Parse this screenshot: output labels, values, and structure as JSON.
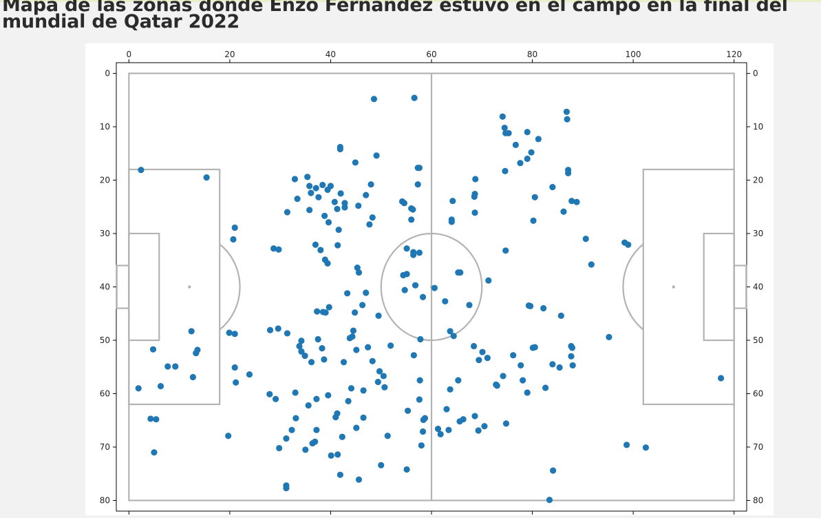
{
  "page": {
    "title": "Mapa de las zonas donde Enzo Fernández estuvo en el campo en la final del mundial de Qatar 2022"
  },
  "colors": {
    "points": "#1f77b4",
    "pitch_lines": "#b3b3b3",
    "figure_bg": "#ffffff",
    "page_bg": "#f2f2f2"
  },
  "chart_data": {
    "type": "scatter",
    "title": "",
    "xlabel": "",
    "ylabel": "",
    "xlim": [
      -2.5,
      122.5
    ],
    "ylim": [
      82,
      -2
    ],
    "y_inverted": true,
    "grid": false,
    "x_ticks": [
      0,
      20,
      40,
      60,
      80,
      100,
      120
    ],
    "y_ticks": [
      0,
      10,
      20,
      30,
      40,
      50,
      60,
      70,
      80
    ],
    "series": [
      {
        "color": "#1f77b4",
        "points": [
          [
            2.4,
            18.1
          ],
          [
            15.4,
            19.5
          ],
          [
            4.8,
            51.7
          ],
          [
            12.4,
            48.3
          ],
          [
            13.6,
            51.8
          ],
          [
            13.3,
            52.4
          ],
          [
            12.7,
            56.9
          ],
          [
            7.7,
            54.9
          ],
          [
            9.2,
            54.9
          ],
          [
            6.3,
            58.6
          ],
          [
            1.9,
            59.0
          ],
          [
            4.3,
            64.7
          ],
          [
            5.4,
            64.8
          ],
          [
            5.0,
            71.0
          ],
          [
            19.7,
            67.9
          ],
          [
            19.9,
            48.6
          ],
          [
            21.0,
            48.8
          ],
          [
            21.0,
            28.9
          ],
          [
            20.7,
            31.1
          ],
          [
            21.0,
            55.1
          ],
          [
            21.2,
            57.9
          ],
          [
            23.9,
            56.4
          ],
          [
            28.0,
            48.1
          ],
          [
            29.6,
            47.8
          ],
          [
            27.9,
            60.1
          ],
          [
            29.1,
            61.0
          ],
          [
            28.7,
            32.8
          ],
          [
            29.7,
            33.0
          ],
          [
            31.4,
            26.0
          ],
          [
            32.9,
            19.8
          ],
          [
            33.4,
            23.5
          ],
          [
            35.4,
            19.4
          ],
          [
            35.8,
            21.1
          ],
          [
            36.1,
            22.4
          ],
          [
            35.8,
            25.6
          ],
          [
            37.1,
            21.5
          ],
          [
            37.6,
            23.2
          ],
          [
            38.4,
            20.9
          ],
          [
            38.8,
            26.7
          ],
          [
            39.4,
            21.8
          ],
          [
            40.0,
            21.1
          ],
          [
            39.6,
            27.9
          ],
          [
            40.8,
            24.1
          ],
          [
            41.3,
            25.4
          ],
          [
            42.0,
            22.5
          ],
          [
            42.8,
            24.3
          ],
          [
            42.8,
            25.1
          ],
          [
            41.6,
            29.3
          ],
          [
            41.9,
            13.8
          ],
          [
            41.9,
            14.2
          ],
          [
            44.9,
            16.7
          ],
          [
            45.5,
            24.8
          ],
          [
            47.0,
            22.8
          ],
          [
            48.0,
            20.8
          ],
          [
            47.7,
            28.3
          ],
          [
            48.3,
            27.0
          ],
          [
            49.1,
            15.4
          ],
          [
            48.6,
            4.8
          ],
          [
            56.6,
            4.6
          ],
          [
            37.0,
            32.1
          ],
          [
            38.0,
            33.1
          ],
          [
            38.9,
            34.9
          ],
          [
            39.4,
            35.6
          ],
          [
            41.4,
            32.2
          ],
          [
            45.3,
            36.4
          ],
          [
            45.6,
            37.3
          ],
          [
            37.3,
            44.6
          ],
          [
            38.5,
            44.7
          ],
          [
            39.0,
            44.8
          ],
          [
            39.7,
            43.8
          ],
          [
            43.3,
            41.2
          ],
          [
            44.8,
            44.8
          ],
          [
            46.3,
            43.4
          ],
          [
            47.0,
            41.1
          ],
          [
            49.5,
            45.4
          ],
          [
            31.4,
            48.7
          ],
          [
            33.8,
            51.1
          ],
          [
            34.2,
            50.1
          ],
          [
            34.2,
            52.1
          ],
          [
            34.9,
            52.9
          ],
          [
            36.2,
            54.1
          ],
          [
            37.5,
            49.8
          ],
          [
            38.3,
            51.5
          ],
          [
            38.7,
            53.6
          ],
          [
            42.6,
            54.1
          ],
          [
            43.8,
            49.6
          ],
          [
            44.3,
            49.3
          ],
          [
            44.5,
            48.2
          ],
          [
            45.1,
            51.8
          ],
          [
            47.4,
            51.3
          ],
          [
            48.3,
            53.9
          ],
          [
            49.4,
            57.8
          ],
          [
            49.7,
            55.8
          ],
          [
            50.5,
            56.7
          ],
          [
            50.7,
            58.8
          ],
          [
            51.9,
            51.0
          ],
          [
            33.0,
            59.8
          ],
          [
            35.6,
            62.2
          ],
          [
            37.2,
            61.0
          ],
          [
            39.5,
            60.3
          ],
          [
            41.3,
            63.7
          ],
          [
            41.0,
            64.4
          ],
          [
            44.1,
            59.0
          ],
          [
            43.5,
            61.4
          ],
          [
            46.5,
            59.4
          ],
          [
            46.5,
            64.5
          ],
          [
            45.1,
            66.4
          ],
          [
            32.3,
            66.8
          ],
          [
            33.1,
            64.6
          ],
          [
            31.2,
            68.4
          ],
          [
            29.8,
            70.2
          ],
          [
            35.0,
            70.5
          ],
          [
            36.4,
            69.3
          ],
          [
            36.9,
            69.0
          ],
          [
            37.2,
            66.8
          ],
          [
            42.3,
            68.1
          ],
          [
            40.1,
            71.6
          ],
          [
            41.4,
            71.4
          ],
          [
            41.9,
            75.2
          ],
          [
            45.6,
            76.1
          ],
          [
            31.2,
            77.2
          ],
          [
            31.2,
            77.7
          ],
          [
            50.0,
            73.4
          ],
          [
            51.3,
            67.9
          ],
          [
            54.6,
            24.3
          ],
          [
            54.2,
            24.0
          ],
          [
            56.0,
            25.3
          ],
          [
            56.3,
            25.5
          ],
          [
            56.0,
            27.4
          ],
          [
            57.6,
            17.7
          ],
          [
            57.3,
            17.7
          ],
          [
            57.3,
            20.8
          ],
          [
            55.1,
            32.8
          ],
          [
            56.4,
            33.5
          ],
          [
            56.4,
            34.0
          ],
          [
            57.6,
            33.6
          ],
          [
            54.4,
            37.8
          ],
          [
            55.1,
            37.6
          ],
          [
            54.7,
            40.6
          ],
          [
            56.8,
            39.7
          ],
          [
            58.3,
            41.9
          ],
          [
            57.8,
            49.8
          ],
          [
            56.5,
            52.8
          ],
          [
            57.7,
            57.5
          ],
          [
            57.6,
            61.1
          ],
          [
            58.4,
            64.9
          ],
          [
            58.7,
            64.6
          ],
          [
            58.3,
            67.1
          ],
          [
            58.0,
            69.7
          ],
          [
            55.3,
            63.2
          ],
          [
            55.1,
            74.2
          ],
          [
            61.3,
            66.6
          ],
          [
            61.8,
            67.6
          ],
          [
            63.4,
            66.8
          ],
          [
            60.6,
            40.2
          ],
          [
            62.7,
            42.7
          ],
          [
            65.3,
            37.3
          ],
          [
            65.7,
            37.3
          ],
          [
            67.5,
            43.4
          ],
          [
            63.7,
            48.3
          ],
          [
            64.4,
            49.2
          ],
          [
            65.3,
            57.5
          ],
          [
            63.7,
            59.2
          ],
          [
            63.0,
            62.9
          ],
          [
            65.6,
            65.2
          ],
          [
            66.3,
            64.8
          ],
          [
            68.6,
            64.2
          ],
          [
            69.3,
            66.9
          ],
          [
            70.5,
            66.1
          ],
          [
            68.4,
            51.1
          ],
          [
            69.4,
            53.7
          ],
          [
            70.1,
            52.2
          ],
          [
            71.1,
            53.3
          ],
          [
            72.8,
            58.3
          ],
          [
            73.0,
            58.5
          ],
          [
            74.2,
            56.7
          ],
          [
            74.8,
            65.6
          ],
          [
            64.2,
            23.9
          ],
          [
            64.0,
            27.4
          ],
          [
            64.0,
            27.8
          ],
          [
            68.6,
            22.6
          ],
          [
            68.5,
            23.1
          ],
          [
            68.6,
            26.1
          ],
          [
            68.7,
            19.8
          ],
          [
            74.1,
            8.1
          ],
          [
            74.5,
            10.2
          ],
          [
            74.7,
            11.2
          ],
          [
            75.3,
            11.2
          ],
          [
            76.7,
            13.4
          ],
          [
            77.6,
            16.8
          ],
          [
            79.0,
            11.0
          ],
          [
            79.0,
            16.0
          ],
          [
            79.8,
            14.8
          ],
          [
            80.5,
            23.2
          ],
          [
            81.2,
            12.3
          ],
          [
            74.6,
            18.3
          ],
          [
            74.7,
            33.2
          ],
          [
            71.3,
            38.8
          ],
          [
            80.2,
            27.6
          ],
          [
            84.0,
            21.3
          ],
          [
            86.2,
            25.9
          ],
          [
            86.8,
            7.2
          ],
          [
            86.9,
            8.6
          ],
          [
            87.1,
            18.1
          ],
          [
            87.1,
            18.7
          ],
          [
            87.8,
            23.9
          ],
          [
            88.8,
            24.1
          ],
          [
            90.6,
            31.0
          ],
          [
            91.7,
            35.8
          ],
          [
            98.3,
            31.7
          ],
          [
            99.0,
            32.1
          ],
          [
            79.3,
            43.5
          ],
          [
            79.6,
            43.6
          ],
          [
            82.2,
            44.0
          ],
          [
            85.7,
            45.4
          ],
          [
            76.2,
            52.8
          ],
          [
            77.7,
            54.7
          ],
          [
            78.1,
            57.5
          ],
          [
            79.0,
            59.8
          ],
          [
            80.1,
            51.4
          ],
          [
            80.5,
            51.3
          ],
          [
            82.6,
            58.9
          ],
          [
            84.0,
            54.5
          ],
          [
            85.4,
            55.1
          ],
          [
            87.7,
            53.0
          ],
          [
            87.7,
            51.1
          ],
          [
            88.0,
            54.7
          ],
          [
            87.9,
            51.4
          ],
          [
            95.2,
            49.4
          ],
          [
            98.7,
            69.6
          ],
          [
            102.5,
            70.1
          ],
          [
            84.1,
            74.4
          ],
          [
            83.4,
            79.9
          ],
          [
            117.4,
            57.1
          ]
        ]
      }
    ]
  }
}
